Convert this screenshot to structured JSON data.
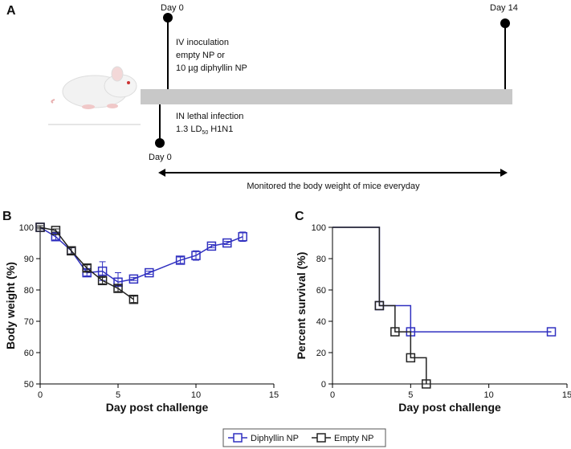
{
  "diagram": {
    "label": "A",
    "day_start_top": "Day 0",
    "day_end": "Day 14",
    "day_start_bottom": "Day 0",
    "iv_text": [
      "IV inoculation",
      "empty NP or",
      "10 µg diphyllin NP"
    ],
    "in_text": "IN lethal infection",
    "dose": {
      "prefix": "1.3 LD",
      "subscript": "50",
      "suffix": "H1N1"
    },
    "monitor_text": "Monitored the body weight of mice everyday"
  },
  "chart_data": [
    {
      "type": "line",
      "label": "B",
      "xlabel": "Day post challenge",
      "ylabel": "Body weight (%)",
      "xlim": [
        0,
        15
      ],
      "xticks": [
        0,
        5,
        10,
        15
      ],
      "ylim": [
        50,
        100
      ],
      "yticks": [
        50,
        60,
        70,
        80,
        90,
        100
      ],
      "series": [
        {
          "name": "Diphyllin NP",
          "color": "#3030c0",
          "x": [
            0,
            1,
            2,
            3,
            4,
            5,
            6,
            7,
            9,
            10,
            11,
            12,
            13
          ],
          "values": [
            100,
            97,
            92.5,
            85.5,
            86,
            82.5,
            83.5,
            85.5,
            89.5,
            91,
            94,
            95,
            97
          ],
          "errors": [
            0.5,
            1,
            1,
            1,
            3,
            3,
            0.5,
            0.5,
            1,
            1.5,
            0.5,
            0.5,
            1.5
          ]
        },
        {
          "name": "Empty NP",
          "color": "#222222",
          "x": [
            0,
            1,
            2,
            3,
            4,
            5,
            6
          ],
          "values": [
            100,
            99,
            92.5,
            87,
            83,
            80.5,
            77
          ],
          "errors": [
            0.5,
            0.5,
            1,
            1,
            1,
            1,
            1
          ]
        }
      ]
    },
    {
      "type": "step",
      "label": "C",
      "xlabel": "Day post challenge",
      "ylabel": "Percent survival (%)",
      "xlim": [
        0,
        15
      ],
      "xticks": [
        0,
        5,
        10,
        15
      ],
      "ylim": [
        0,
        100
      ],
      "yticks": [
        0,
        20,
        40,
        60,
        80,
        100
      ],
      "series": [
        {
          "color": "#3030c0",
          "x": [
            0,
            3,
            5,
            14
          ],
          "values": [
            100,
            50,
            33.3,
            33.3
          ]
        },
        {
          "color": "#222222",
          "x": [
            0,
            3,
            4,
            5,
            6
          ],
          "values": [
            100,
            50,
            33.3,
            16.7,
            0
          ]
        }
      ]
    }
  ]
}
